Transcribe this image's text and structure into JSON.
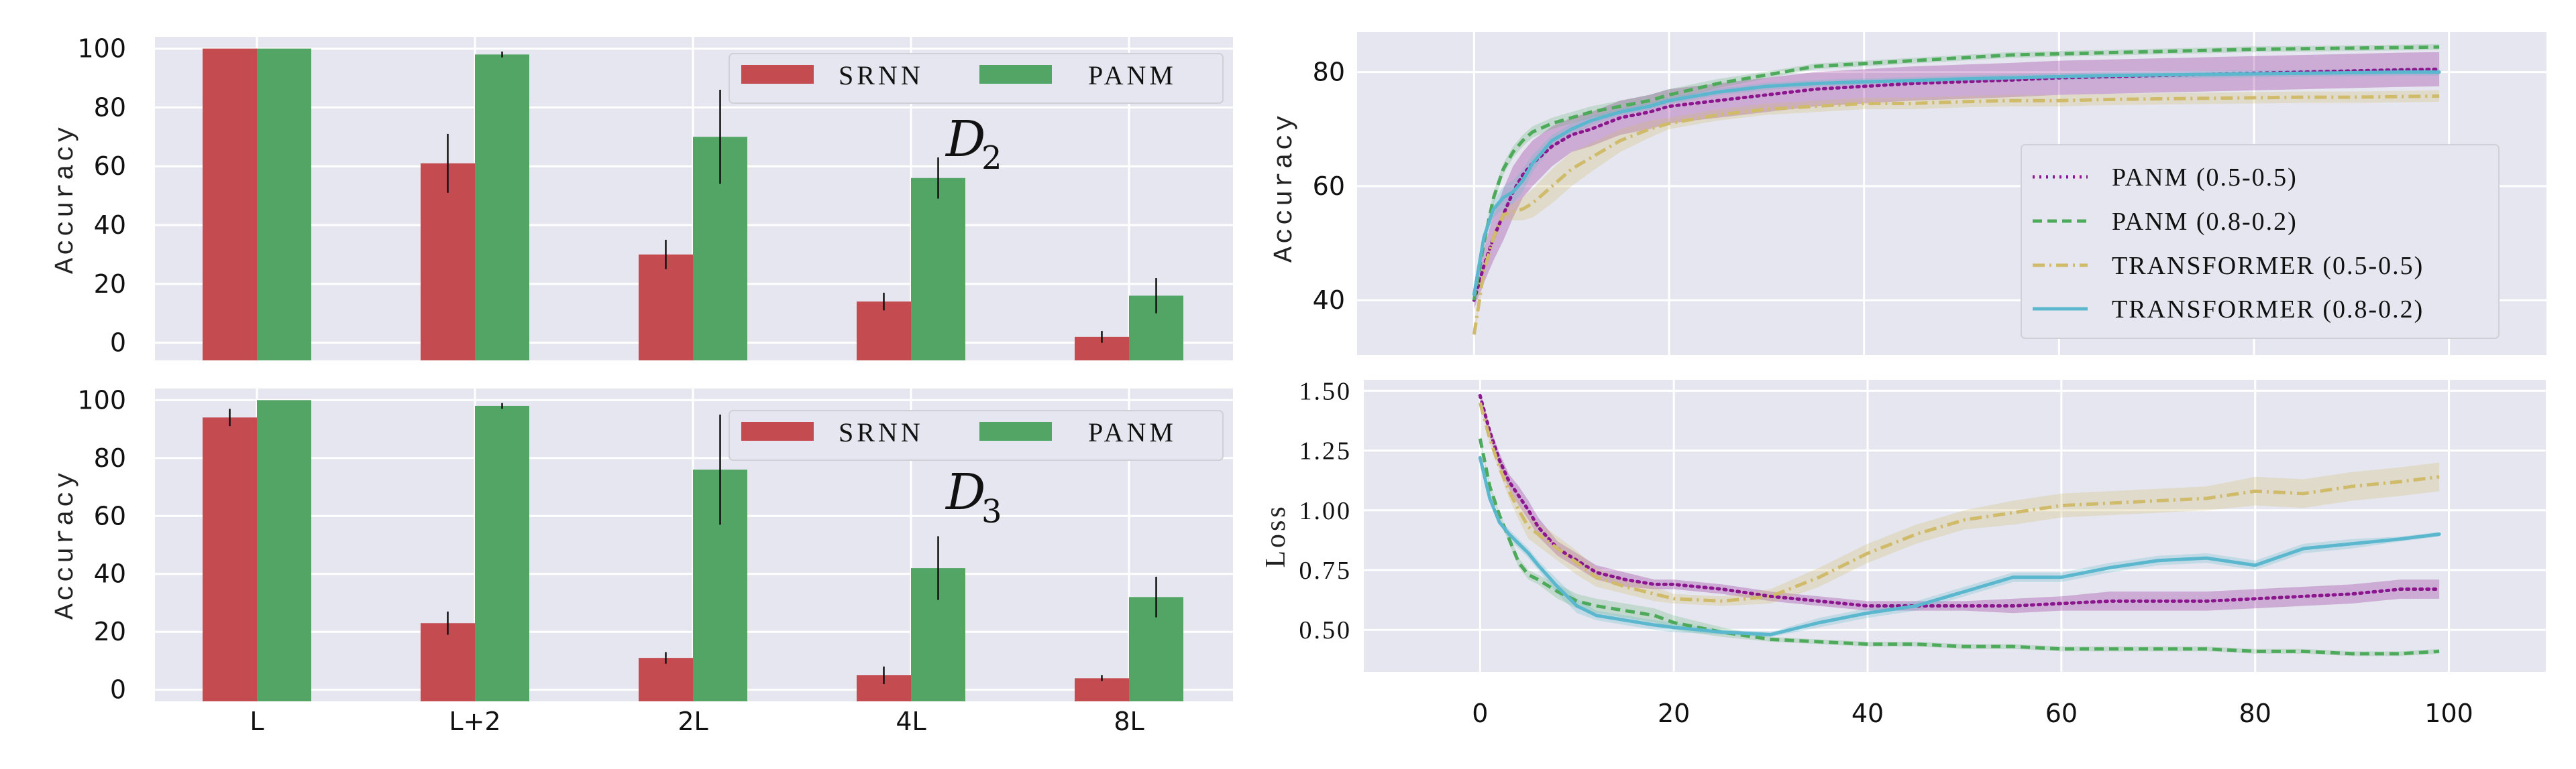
{
  "colors": {
    "plot_bg": "#e5e6ef",
    "grid": "#ffffff",
    "srnn": "#c44b50",
    "panm": "#52a565",
    "panm_05": "#8b168e",
    "panm_08": "#4eaa5b",
    "trans_05": "#d0bb6a",
    "trans_08": "#5ab7cd",
    "errbar": "#111111"
  },
  "chart_data": [
    {
      "id": "bar_d2",
      "type": "bar",
      "title": "",
      "annotation": {
        "main": "D",
        "sub": "2"
      },
      "xlabel": "",
      "ylabel": "Accuracy",
      "ylim": [
        -6,
        104
      ],
      "yticks": [
        0,
        20,
        40,
        60,
        80,
        100
      ],
      "show_xticklabels": false,
      "categories": [
        "L",
        "L+2",
        "2L",
        "4L",
        "8L"
      ],
      "legend": {
        "position": "top-right",
        "entries": [
          "SRNN",
          "PANM"
        ]
      },
      "grid": true,
      "series": [
        {
          "name": "SRNN",
          "values": [
            100,
            61,
            30,
            14,
            2
          ],
          "errors": [
            0,
            10,
            5,
            3,
            2
          ]
        },
        {
          "name": "PANM",
          "values": [
            100,
            98,
            70,
            56,
            16
          ],
          "errors": [
            0,
            1,
            16,
            7,
            6
          ]
        }
      ]
    },
    {
      "id": "bar_d3",
      "type": "bar",
      "title": "",
      "annotation": {
        "main": "D",
        "sub": "3"
      },
      "xlabel": "",
      "ylabel": "Accuracy",
      "ylim": [
        -4,
        104
      ],
      "yticks": [
        0,
        20,
        40,
        60,
        80,
        100
      ],
      "show_xticklabels": true,
      "categories": [
        "L",
        "L+2",
        "2L",
        "4L",
        "8L"
      ],
      "legend": {
        "position": "top-right",
        "entries": [
          "SRNN",
          "PANM"
        ]
      },
      "grid": true,
      "series": [
        {
          "name": "SRNN",
          "values": [
            94,
            23,
            11,
            5,
            4
          ],
          "errors": [
            3,
            4,
            2,
            3,
            1
          ]
        },
        {
          "name": "PANM",
          "values": [
            100,
            98,
            76,
            42,
            32
          ],
          "errors": [
            0,
            1,
            19,
            11,
            7
          ]
        }
      ]
    },
    {
      "id": "line_acc",
      "type": "line",
      "title": "",
      "xlabel": "",
      "ylabel": "Accuracy",
      "xlim": [
        -12,
        110
      ],
      "ylim": [
        30.4,
        87
      ],
      "yticks": [
        40,
        60,
        80
      ],
      "xticks": [
        0,
        20,
        40,
        60,
        80,
        100
      ],
      "show_xticklabels": false,
      "legend": {
        "position": "center-right",
        "entries": [
          "PANM (0.5-0.5)",
          "PANM (0.8-0.2)",
          "TRANSFORMER (0.5-0.5)",
          "TRANSFORMER (0.8-0.2)"
        ]
      },
      "grid": true,
      "x": [
        0,
        1,
        2,
        3,
        4,
        5,
        6,
        8,
        10,
        12,
        15,
        18,
        20,
        25,
        30,
        35,
        40,
        45,
        50,
        55,
        60,
        65,
        70,
        75,
        80,
        85,
        90,
        95,
        99
      ],
      "series": [
        {
          "name": "PANM (0.5-0.5)",
          "style": "dotted",
          "values": [
            40,
            46,
            51,
            55,
            59,
            62,
            64,
            67,
            69,
            70,
            72,
            73,
            74,
            75,
            76,
            77,
            77.5,
            78,
            78.3,
            78.6,
            79,
            79.2,
            79.4,
            79.6,
            79.8,
            80,
            80.2,
            80.4,
            80.5
          ],
          "band": [
            1.5,
            3,
            4,
            4.5,
            4.5,
            4,
            4,
            3.5,
            3,
            3,
            3,
            3,
            3,
            3,
            3,
            3,
            3,
            3,
            3,
            3,
            3,
            3,
            3,
            3,
            3,
            3,
            3,
            3,
            3
          ]
        },
        {
          "name": "PANM (0.8-0.2)",
          "style": "dashed",
          "values": [
            40,
            50,
            58,
            63,
            66,
            68,
            69.5,
            71,
            72,
            73,
            74,
            75,
            76,
            78,
            79.5,
            81,
            81.5,
            82,
            82.5,
            83,
            83.2,
            83.4,
            83.6,
            83.8,
            84,
            84.1,
            84.2,
            84.3,
            84.4
          ],
          "band": [
            0.5,
            1,
            1,
            1,
            1,
            1,
            1,
            1,
            1,
            1,
            1,
            1,
            1,
            0.8,
            0.6,
            0.5,
            0.5,
            0.5,
            0.5,
            0.5,
            0.5,
            0.5,
            0.5,
            0.5,
            0.5,
            0.5,
            0.5,
            0.5,
            0.5
          ]
        },
        {
          "name": "TRANSFORMER (0.5-0.5)",
          "style": "dashdot",
          "values": [
            34,
            45,
            51,
            55,
            55.5,
            56,
            57,
            60,
            63,
            65,
            68,
            70,
            71,
            72.5,
            73.5,
            74,
            74.5,
            74.5,
            74.8,
            75,
            75,
            75.2,
            75.3,
            75.4,
            75.5,
            75.6,
            75.6,
            75.7,
            75.8
          ],
          "band": [
            1,
            1,
            1,
            1,
            1.5,
            2,
            2.5,
            3,
            3,
            2.5,
            2,
            1.5,
            1,
            1,
            1,
            1,
            1,
            1,
            1,
            1,
            1,
            1,
            1,
            1,
            1,
            1,
            1,
            1,
            1
          ]
        },
        {
          "name": "TRANSFORMER (0.8-0.2)",
          "style": "solid",
          "values": [
            41,
            51,
            56,
            58,
            59,
            61,
            64,
            68,
            70,
            71.5,
            73,
            74,
            75,
            76.5,
            77.5,
            78,
            78.3,
            78.5,
            78.8,
            79,
            79.2,
            79.4,
            79.5,
            79.6,
            79.7,
            79.8,
            79.9,
            80,
            80
          ],
          "band": [
            1,
            1,
            1.5,
            2,
            2,
            2,
            1.5,
            1,
            1,
            0.8,
            0.6,
            0.6,
            0.6,
            0.6,
            0.6,
            0.6,
            0.6,
            0.6,
            0.6,
            0.6,
            0.6,
            0.6,
            0.6,
            0.6,
            0.6,
            0.6,
            0.6,
            0.6,
            0.6
          ]
        }
      ]
    },
    {
      "id": "line_loss",
      "type": "line",
      "title": "",
      "xlabel": "",
      "ylabel": "Loss",
      "xlim": [
        -12,
        110
      ],
      "ylim": [
        0.324,
        1.546
      ],
      "yticks": [
        0.5,
        0.75,
        1.0,
        1.25,
        1.5
      ],
      "ytick_labels": [
        "0.50",
        "0.75",
        "1.00",
        "1.25",
        "1.50"
      ],
      "xticks": [
        0,
        20,
        40,
        60,
        80,
        100
      ],
      "show_xticklabels": true,
      "grid": true,
      "x": [
        0,
        1,
        2,
        3,
        4,
        5,
        6,
        8,
        10,
        12,
        15,
        18,
        20,
        25,
        30,
        35,
        40,
        45,
        50,
        55,
        60,
        65,
        70,
        75,
        80,
        85,
        90,
        95,
        99
      ],
      "series": [
        {
          "name": "PANM (0.5-0.5)",
          "style": "dotted",
          "values": [
            1.48,
            1.33,
            1.21,
            1.12,
            1.06,
            1.0,
            0.93,
            0.84,
            0.79,
            0.74,
            0.71,
            0.69,
            0.69,
            0.67,
            0.64,
            0.62,
            0.6,
            0.6,
            0.6,
            0.6,
            0.61,
            0.62,
            0.62,
            0.62,
            0.63,
            0.64,
            0.65,
            0.67,
            0.67
          ],
          "band": [
            0.02,
            0.02,
            0.03,
            0.03,
            0.04,
            0.04,
            0.04,
            0.03,
            0.03,
            0.03,
            0.03,
            0.02,
            0.02,
            0.02,
            0.02,
            0.02,
            0.02,
            0.02,
            0.02,
            0.03,
            0.03,
            0.04,
            0.04,
            0.04,
            0.04,
            0.04,
            0.04,
            0.04,
            0.04
          ]
        },
        {
          "name": "PANM (0.8-0.2)",
          "style": "dashed",
          "values": [
            1.3,
            1.1,
            0.98,
            0.88,
            0.78,
            0.73,
            0.71,
            0.66,
            0.62,
            0.6,
            0.58,
            0.56,
            0.53,
            0.49,
            0.46,
            0.45,
            0.44,
            0.44,
            0.43,
            0.43,
            0.42,
            0.42,
            0.42,
            0.42,
            0.41,
            0.41,
            0.4,
            0.4,
            0.41
          ],
          "band": [
            0.01,
            0.01,
            0.01,
            0.02,
            0.02,
            0.02,
            0.02,
            0.03,
            0.03,
            0.03,
            0.03,
            0.03,
            0.03,
            0.02,
            0.01,
            0.01,
            0.01,
            0.01,
            0.01,
            0.01,
            0.01,
            0.01,
            0.01,
            0.01,
            0.01,
            0.01,
            0.01,
            0.01,
            0.01
          ]
        },
        {
          "name": "TRANSFORMER (0.5-0.5)",
          "style": "dashdot",
          "values": [
            1.45,
            1.3,
            1.18,
            1.08,
            1.0,
            0.93,
            0.9,
            0.84,
            0.78,
            0.72,
            0.68,
            0.65,
            0.63,
            0.62,
            0.64,
            0.72,
            0.82,
            0.9,
            0.96,
            0.99,
            1.02,
            1.03,
            1.04,
            1.05,
            1.08,
            1.07,
            1.1,
            1.12,
            1.14
          ],
          "band": [
            0.02,
            0.02,
            0.02,
            0.03,
            0.04,
            0.05,
            0.05,
            0.05,
            0.05,
            0.04,
            0.03,
            0.03,
            0.02,
            0.02,
            0.03,
            0.04,
            0.04,
            0.04,
            0.04,
            0.05,
            0.05,
            0.05,
            0.05,
            0.05,
            0.06,
            0.06,
            0.06,
            0.06,
            0.06
          ]
        },
        {
          "name": "TRANSFORMER (0.8-0.2)",
          "style": "solid",
          "values": [
            1.22,
            1.05,
            0.95,
            0.9,
            0.86,
            0.82,
            0.77,
            0.68,
            0.6,
            0.56,
            0.54,
            0.52,
            0.51,
            0.49,
            0.48,
            0.53,
            0.57,
            0.6,
            0.66,
            0.72,
            0.72,
            0.76,
            0.79,
            0.8,
            0.77,
            0.84,
            0.86,
            0.88,
            0.9
          ],
          "band": [
            0.01,
            0.01,
            0.01,
            0.02,
            0.02,
            0.02,
            0.02,
            0.03,
            0.03,
            0.02,
            0.02,
            0.02,
            0.02,
            0.01,
            0.01,
            0.02,
            0.02,
            0.02,
            0.02,
            0.02,
            0.02,
            0.02,
            0.02,
            0.02,
            0.02,
            0.02,
            0.02,
            0.01,
            0.01
          ]
        }
      ]
    }
  ]
}
